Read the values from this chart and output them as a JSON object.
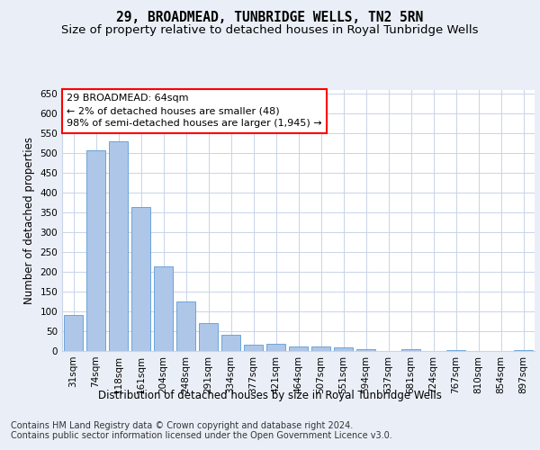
{
  "title": "29, BROADMEAD, TUNBRIDGE WELLS, TN2 5RN",
  "subtitle": "Size of property relative to detached houses in Royal Tunbridge Wells",
  "xlabel": "Distribution of detached houses by size in Royal Tunbridge Wells",
  "ylabel": "Number of detached properties",
  "footnote": "Contains HM Land Registry data © Crown copyright and database right 2024.\nContains public sector information licensed under the Open Government Licence v3.0.",
  "bar_labels": [
    "31sqm",
    "74sqm",
    "118sqm",
    "161sqm",
    "204sqm",
    "248sqm",
    "291sqm",
    "334sqm",
    "377sqm",
    "421sqm",
    "464sqm",
    "507sqm",
    "551sqm",
    "594sqm",
    "637sqm",
    "681sqm",
    "724sqm",
    "767sqm",
    "810sqm",
    "854sqm",
    "897sqm"
  ],
  "bar_values": [
    90,
    507,
    530,
    365,
    215,
    125,
    70,
    42,
    15,
    19,
    11,
    11,
    8,
    5,
    0,
    5,
    0,
    3,
    0,
    0,
    3
  ],
  "bar_color": "#aec6e8",
  "bar_edge_color": "#5b9bd5",
  "annotation_text": "29 BROADMEAD: 64sqm\n← 2% of detached houses are smaller (48)\n98% of semi-detached houses are larger (1,945) →",
  "annotation_box_color": "white",
  "annotation_box_edge_color": "red",
  "ylim": [
    0,
    660
  ],
  "yticks": [
    0,
    50,
    100,
    150,
    200,
    250,
    300,
    350,
    400,
    450,
    500,
    550,
    600,
    650
  ],
  "background_color": "#eaeff7",
  "plot_bg_color": "white",
  "grid_color": "#c8d4e8",
  "title_fontsize": 10.5,
  "subtitle_fontsize": 9.5,
  "axis_label_fontsize": 8.5,
  "tick_fontsize": 7.5,
  "annotation_fontsize": 8,
  "footnote_fontsize": 7
}
